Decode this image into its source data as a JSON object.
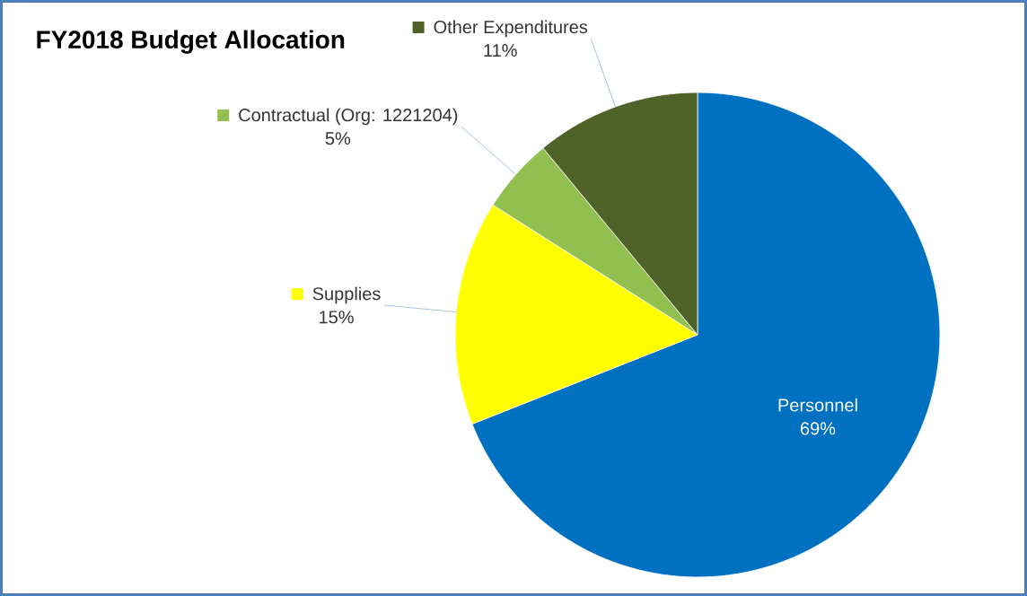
{
  "chart_data": {
    "type": "pie",
    "title": "FY2018 Budget Allocation",
    "categories": [
      "Personnel",
      "Supplies",
      "Contractual (Org: 1221204)",
      "Other Expenditures"
    ],
    "values": [
      69,
      15,
      5,
      11
    ],
    "colors": [
      "#0070c0",
      "#ffff00",
      "#92c050",
      "#4f6228"
    ],
    "value_labels": [
      "69%",
      "15%",
      "5%",
      "11%"
    ],
    "legend": "top left"
  }
}
